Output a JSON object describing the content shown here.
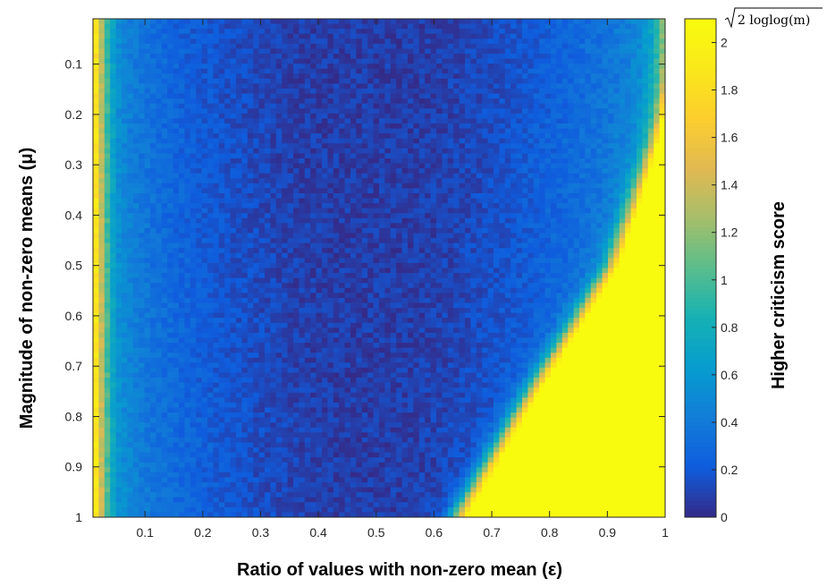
{
  "chart_data": {
    "type": "heatmap",
    "title": "",
    "xlabel": "Ratio of values with non-zero mean (ε)",
    "ylabel": "Magnitude of non-zero means (μ)",
    "x_range": [
      0.01,
      1
    ],
    "y_range": [
      0.01,
      1
    ],
    "y_reversed": true,
    "x_ticks": [
      "0.1",
      "0.2",
      "0.3",
      "0.4",
      "0.5",
      "0.6",
      "0.7",
      "0.8",
      "0.9",
      "1"
    ],
    "y_ticks": [
      "0.1",
      "0.2",
      "0.3",
      "0.4",
      "0.5",
      "0.6",
      "0.7",
      "0.8",
      "0.9",
      "1"
    ],
    "grid_resolution": [
      100,
      100
    ],
    "colormap": "parula",
    "color_range": [
      0,
      2.1
    ],
    "colorbar": {
      "label": "Higher criticism score",
      "top_annotation": "2 loglog(m)",
      "annotation_symbol": "square-root",
      "ticks": [
        "0",
        "0.2",
        "0.4",
        "0.6",
        "0.8",
        "1",
        "1.2",
        "1.4",
        "1.6",
        "1.8",
        "2"
      ]
    },
    "pattern": {
      "description_values": "score is low (~0.1) in a V-shaped region centred near ε=0.5, rises toward the left edge (ε→0) and saturates to the maximum in the lower-right corner",
      "low_region_center_eps": 0.48,
      "saturation_boundary": [
        {
          "mu": 0.25,
          "eps": 0.99
        },
        {
          "mu": 0.5,
          "eps": 0.91
        },
        {
          "mu": 0.75,
          "eps": 0.77
        },
        {
          "mu": 1.0,
          "eps": 0.64
        }
      ]
    }
  }
}
